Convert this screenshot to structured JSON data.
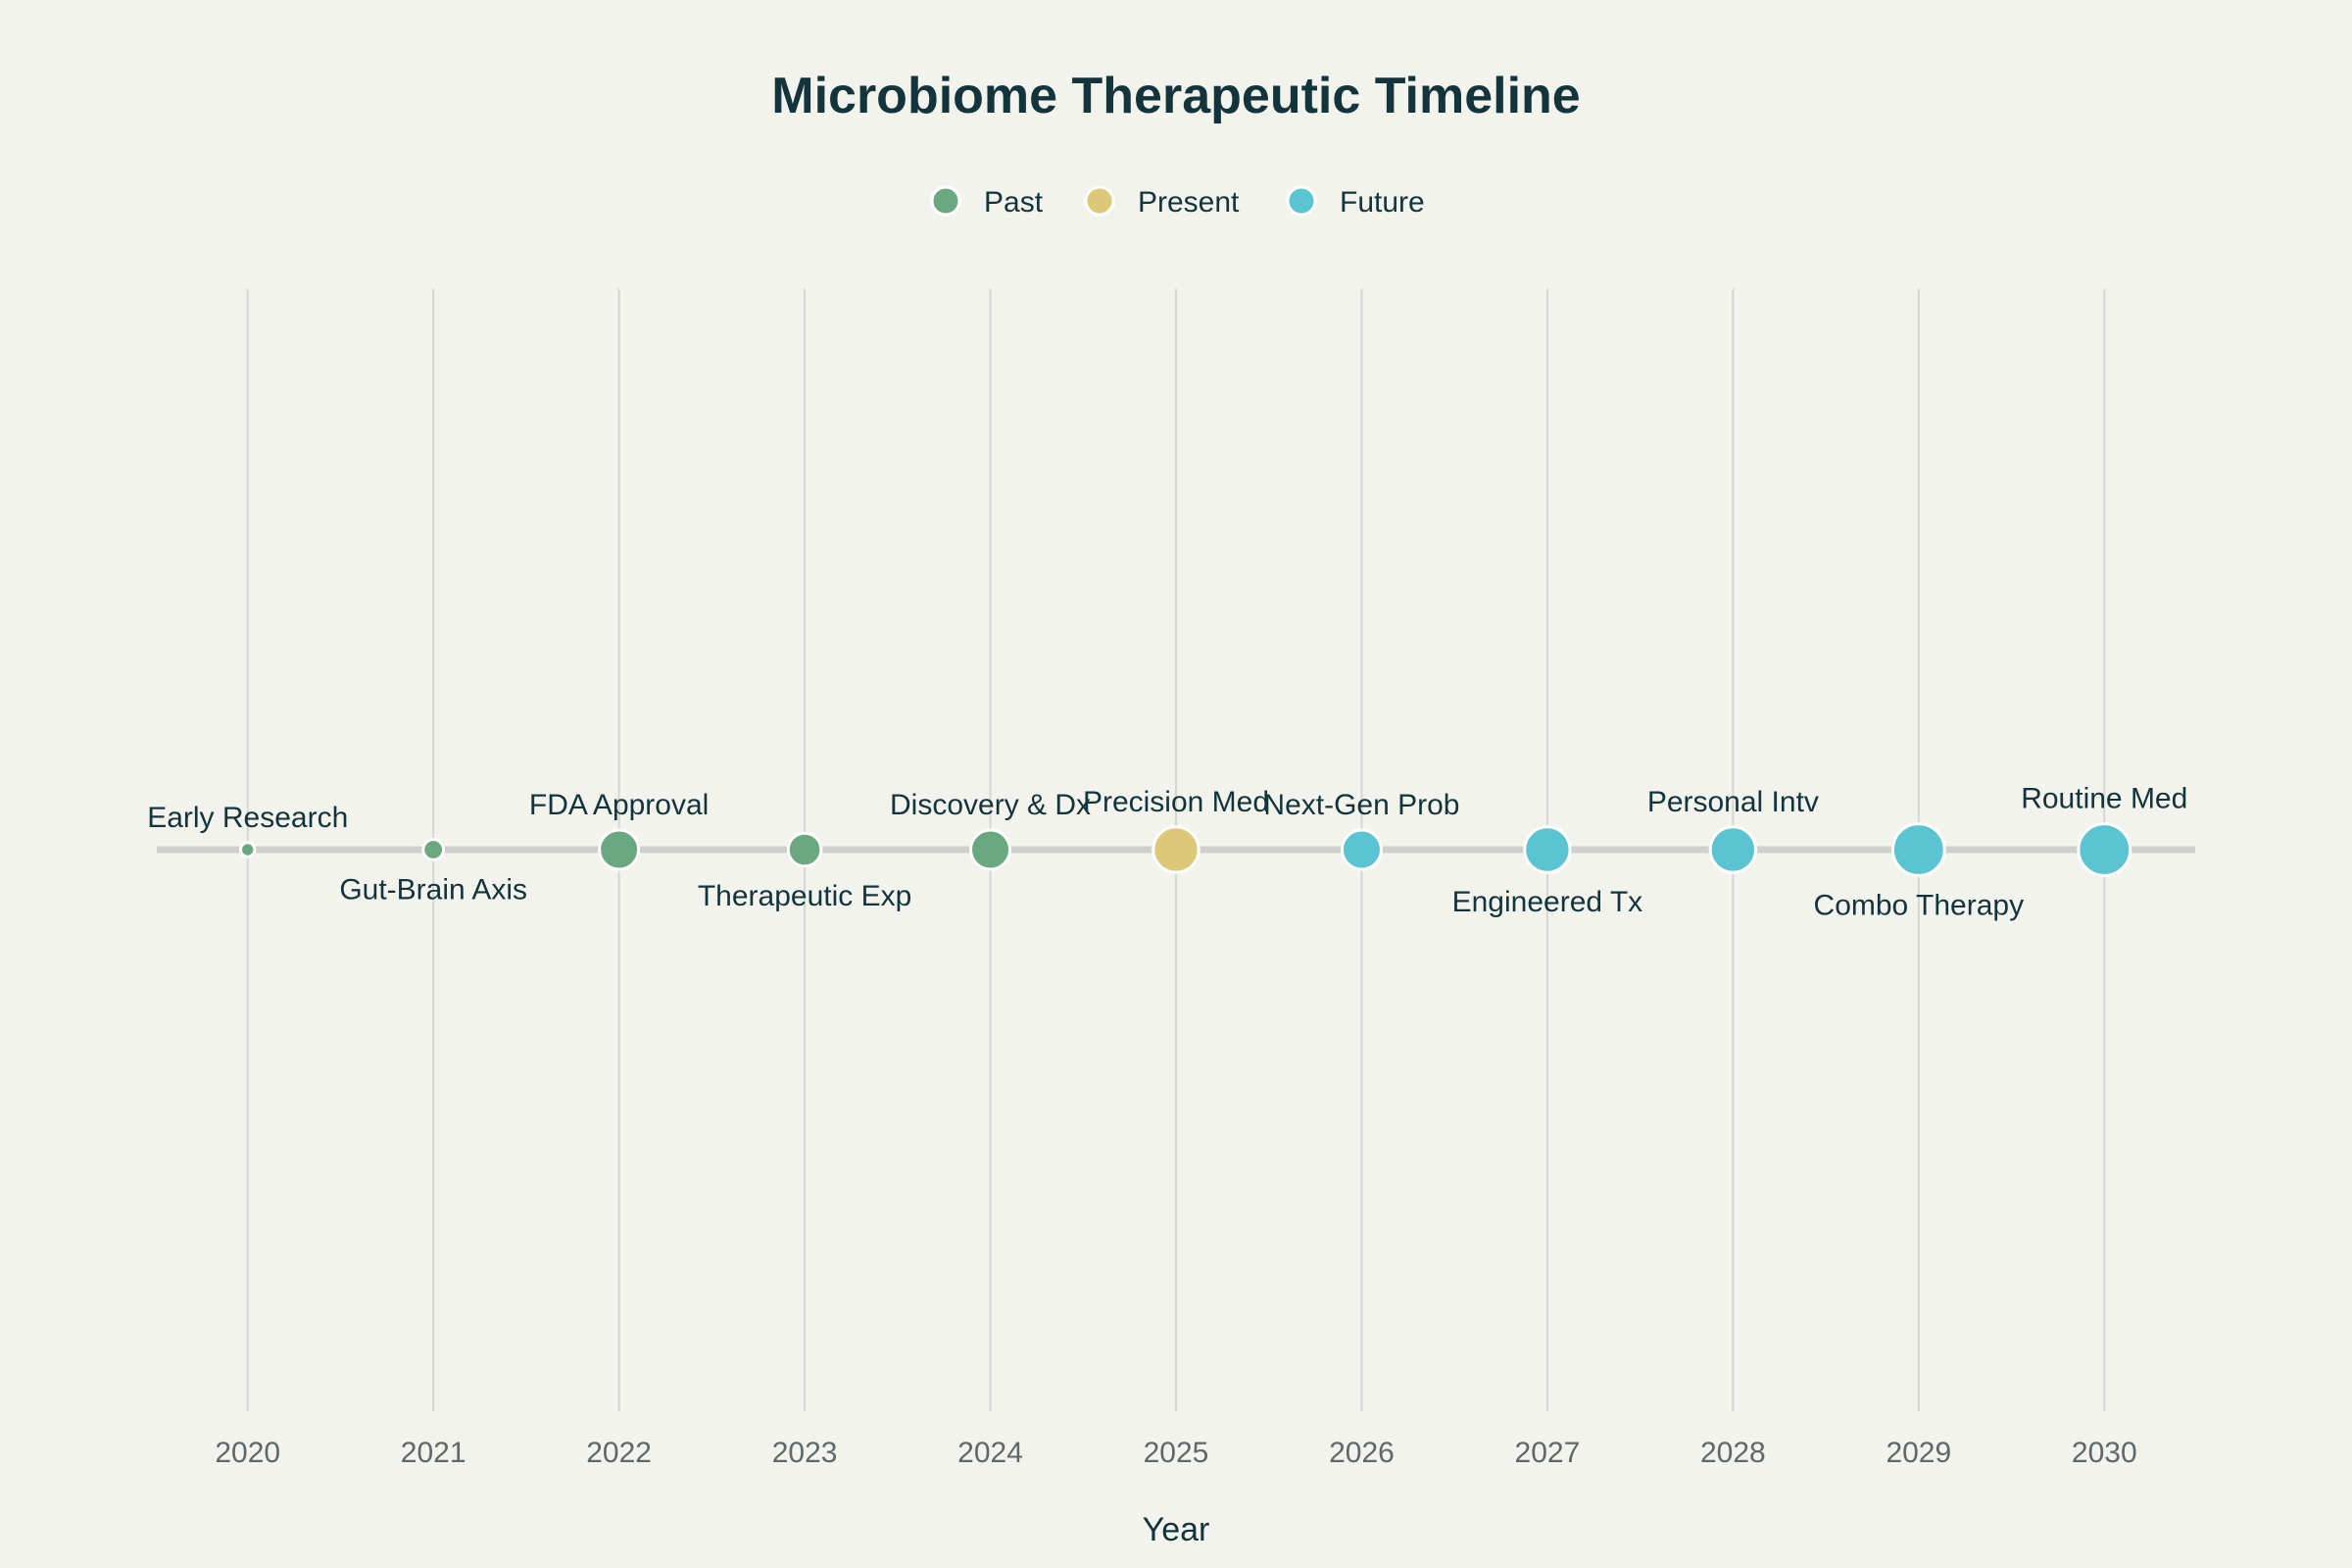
{
  "chart_data": {
    "type": "scatter",
    "title": "Microbiome Therapeutic Timeline",
    "xlabel": "Year",
    "ylabel": "",
    "xlim": [
      2019.5,
      2030.5
    ],
    "xticks": [
      2020,
      2021,
      2022,
      2023,
      2024,
      2025,
      2026,
      2027,
      2028,
      2029,
      2030
    ],
    "grid": true,
    "legend_position": "top-center",
    "series": [
      {
        "name": "Past",
        "color": "#6aa880"
      },
      {
        "name": "Present",
        "color": "#dcc877"
      },
      {
        "name": "Future",
        "color": "#5bc4d2"
      }
    ],
    "points": [
      {
        "x": 2020,
        "label": "Early Research",
        "series": "Past",
        "magnitude": 1,
        "label_position": "above"
      },
      {
        "x": 2021,
        "label": "Gut-Brain Axis",
        "series": "Past",
        "magnitude": 2,
        "label_position": "below"
      },
      {
        "x": 2022,
        "label": "FDA Approval",
        "series": "Past",
        "magnitude": 5,
        "label_position": "above"
      },
      {
        "x": 2023,
        "label": "Therapeutic Exp",
        "series": "Past",
        "magnitude": 4,
        "label_position": "below"
      },
      {
        "x": 2024,
        "label": "Discovery & Dx",
        "series": "Past",
        "magnitude": 5,
        "label_position": "above"
      },
      {
        "x": 2025,
        "label": "Precision Med",
        "series": "Present",
        "magnitude": 6,
        "label_position": "above"
      },
      {
        "x": 2026,
        "label": "Next-Gen Prob",
        "series": "Future",
        "magnitude": 5,
        "label_position": "above"
      },
      {
        "x": 2027,
        "label": "Engineered Tx",
        "series": "Future",
        "magnitude": 6,
        "label_position": "below"
      },
      {
        "x": 2028,
        "label": "Personal Intv",
        "series": "Future",
        "magnitude": 6,
        "label_position": "above"
      },
      {
        "x": 2029,
        "label": "Combo Therapy",
        "series": "Future",
        "magnitude": 7,
        "label_position": "below"
      },
      {
        "x": 2030,
        "label": "Routine Med",
        "series": "Future",
        "magnitude": 7,
        "label_position": "above"
      }
    ]
  }
}
